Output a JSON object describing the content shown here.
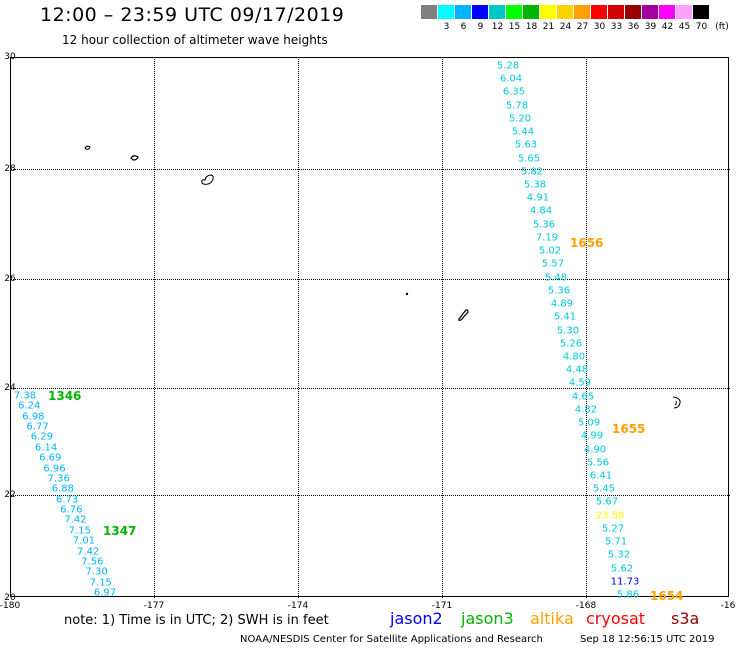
{
  "header": {
    "title": "12:00 – 23:59 UTC 09/17/2019",
    "subtitle": "12 hour collection of altimeter wave heights"
  },
  "legend": {
    "unit": "(ft)",
    "bins": [
      {
        "label": "",
        "color": "#808080"
      },
      {
        "label": "3",
        "color": "#00ffff"
      },
      {
        "label": "6",
        "color": "#00b4ff"
      },
      {
        "label": "9",
        "color": "#0000ff"
      },
      {
        "label": "12",
        "color": "#00c8c8"
      },
      {
        "label": "15",
        "color": "#00ff00"
      },
      {
        "label": "18",
        "color": "#00b400"
      },
      {
        "label": "21",
        "color": "#ffff00"
      },
      {
        "label": "24",
        "color": "#ffd200"
      },
      {
        "label": "27",
        "color": "#ffa000"
      },
      {
        "label": "30",
        "color": "#ff0000"
      },
      {
        "label": "33",
        "color": "#d20000"
      },
      {
        "label": "36",
        "color": "#960000"
      },
      {
        "label": "39",
        "color": "#a000a0"
      },
      {
        "label": "42",
        "color": "#ff00ff"
      },
      {
        "label": "45",
        "color": "#ffa0ff"
      },
      {
        "label": "70",
        "color": "#000000"
      }
    ]
  },
  "axes": {
    "lat_ticks": [
      "30",
      "28",
      "26",
      "24",
      "22",
      "20"
    ],
    "lon_ticks": [
      "-180",
      "-177",
      "-174",
      "-171",
      "-168",
      "-16"
    ]
  },
  "tracks": {
    "east": {
      "color": "#00c8dc",
      "values": [
        "5.28",
        "6.04",
        "6.35",
        "5.78",
        "5.20",
        "5.44",
        "5.63",
        "5.65",
        "5.82",
        "5.38",
        "4.91",
        "4.84",
        "5.36",
        "7.19",
        "5.02",
        "5.57",
        "5.48",
        "5.36",
        "4.89",
        "5.41",
        "5.30",
        "5.26",
        "4.80",
        "4.48",
        "4.59",
        "4.65",
        "4.82",
        "5.09",
        "4.99",
        "4.90",
        "5.56",
        "6.41",
        "5.45",
        "5.67",
        "23.58",
        "5.27",
        "5.71",
        "5.32",
        "5.62",
        "11.73",
        "5.86"
      ],
      "value_colors": {
        "34": "#ffff00",
        "39": "#0000ff"
      }
    },
    "west": {
      "color": "#00b4ff",
      "values": [
        "7.38",
        "6.24",
        "6.98",
        "6.77",
        "6.29",
        "6.14",
        "6.69",
        "6.96",
        "7.36",
        "6.88",
        "6.73",
        "6.76",
        "7.42",
        "7.15",
        "7.01",
        "7.42",
        "7.56",
        "7.30",
        "7.15",
        "6.97"
      ]
    }
  },
  "pass_times": [
    {
      "label": "1656",
      "color": "#ffa000"
    },
    {
      "label": "1346",
      "color": "#00b400"
    },
    {
      "label": "1655",
      "color": "#ffa000"
    },
    {
      "label": "1347",
      "color": "#00b400"
    },
    {
      "label": "1654",
      "color": "#ffa000"
    }
  ],
  "footer": {
    "note": "note:  1) Time is in UTC;  2) SWH is in feet",
    "satellites": [
      {
        "name": "jason2",
        "color": "#0000ff"
      },
      {
        "name": "jason3",
        "color": "#00b400"
      },
      {
        "name": "altika",
        "color": "#ffa000"
      },
      {
        "name": "cryosat",
        "color": "#ff0000"
      },
      {
        "name": "s3a",
        "color": "#960000"
      }
    ],
    "credit": "NOAA/NESDIS Center for Satellite Applications and Research",
    "timestamp": "Sep 18 12:56:15 UTC 2019"
  }
}
